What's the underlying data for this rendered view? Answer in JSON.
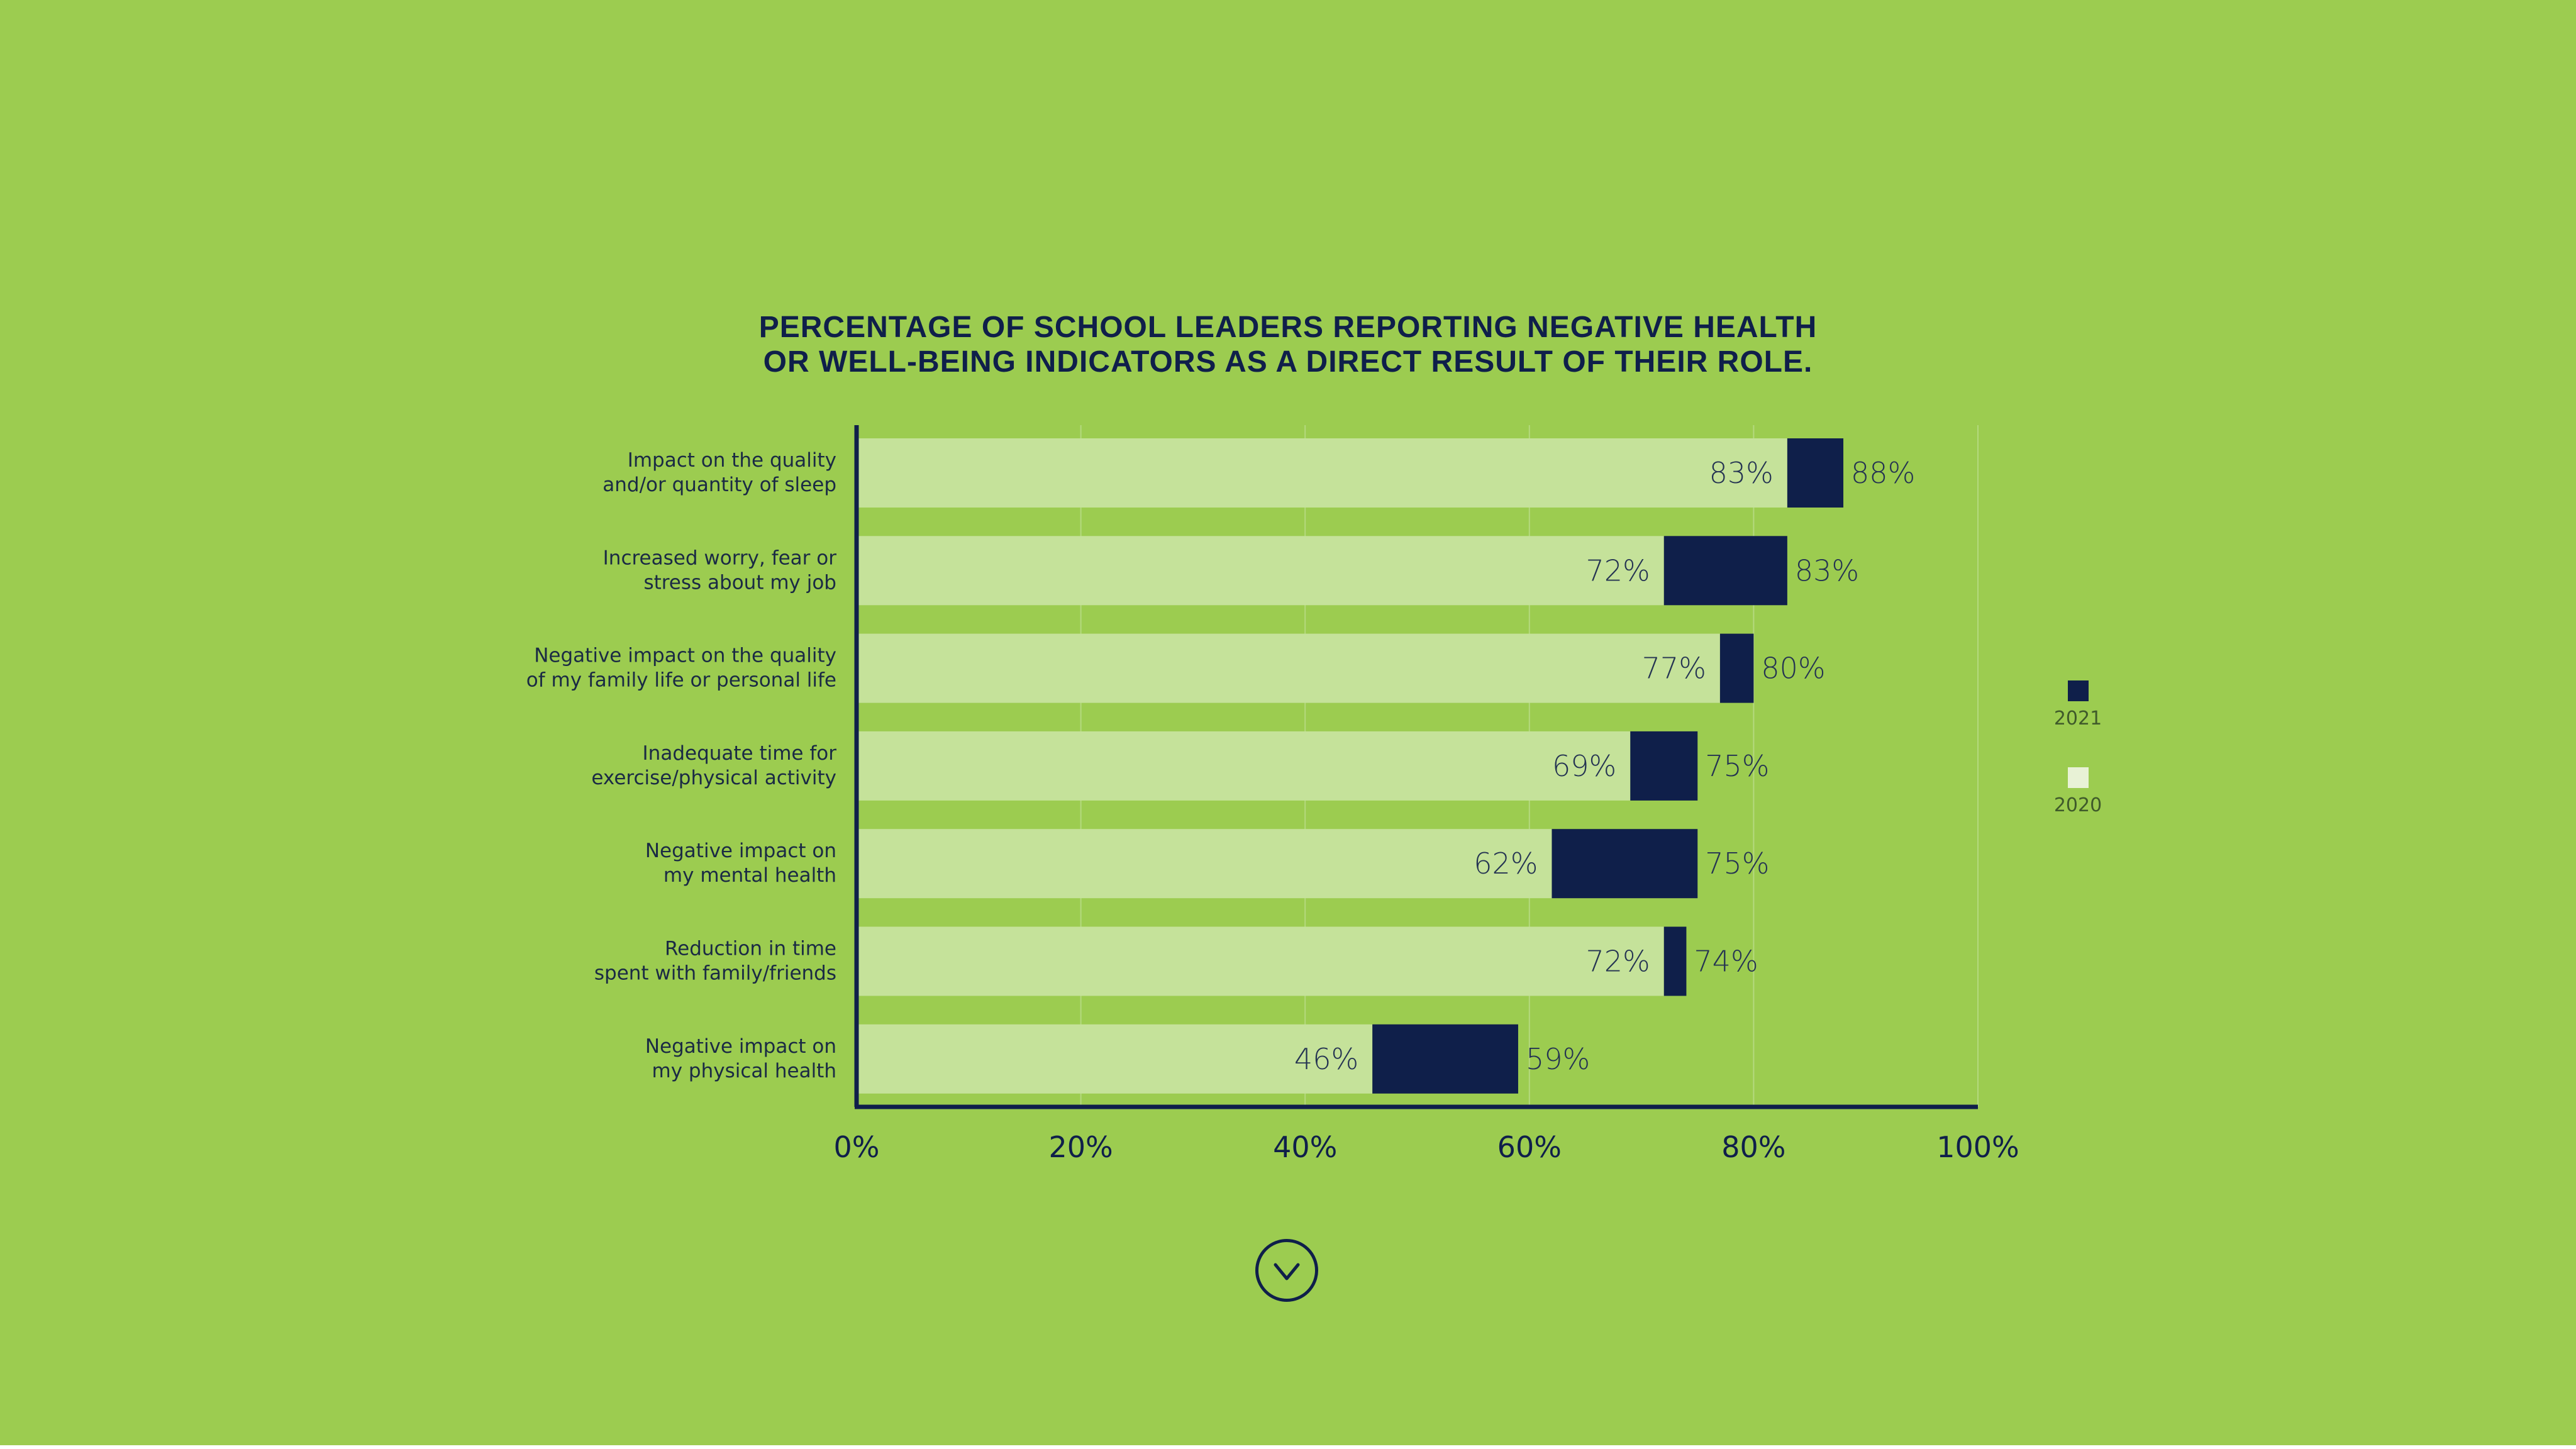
{
  "chart_data": {
    "type": "bar",
    "orientation": "horizontal",
    "title": "PERCENTAGE OF SCHOOL LEADERS REPORTING NEGATIVE HEALTH OR WELL-BEING INDICATORS AS A DIRECT RESULT OF THEIR ROLE.",
    "title_lines": [
      "PERCENTAGE OF SCHOOL LEADERS REPORTING NEGATIVE HEALTH",
      "OR WELL-BEING INDICATORS AS A DIRECT RESULT OF THEIR ROLE."
    ],
    "categories": [
      [
        "Impact on the quality",
        "and/or quantity of sleep"
      ],
      [
        "Increased worry, fear or",
        "stress about my job"
      ],
      [
        "Negative impact on the quality",
        "of my family life or personal life"
      ],
      [
        "Inadequate time for",
        "exercise/physical activity"
      ],
      [
        "Negative impact on",
        "my mental health"
      ],
      [
        "Reduction in time",
        "spent with family/friends"
      ],
      [
        "Negative impact on",
        "my physical health"
      ]
    ],
    "series": [
      {
        "name": "2020",
        "color": "#c5e29a",
        "values": [
          83,
          72,
          77,
          69,
          62,
          72,
          46
        ]
      },
      {
        "name": "2021",
        "color": "#0f1f4a",
        "values": [
          88,
          83,
          80,
          75,
          75,
          74,
          59
        ]
      }
    ],
    "xlim": [
      0,
      100
    ],
    "xticks": [
      "0%",
      "20%",
      "40%",
      "60%",
      "80%",
      "100%"
    ],
    "tick_values": [
      0,
      20,
      40,
      60,
      80,
      100
    ],
    "value_suffix": "%",
    "grid": true,
    "legend": {
      "position": "right",
      "items": [
        {
          "label": "2021",
          "color": "#0f1f4a"
        },
        {
          "label": "2020",
          "color": "#e8f2d6"
        }
      ]
    },
    "xlabel": "",
    "ylabel": ""
  },
  "colors": {
    "background": "#9ccc50",
    "dark": "#0f1f4a",
    "light_bar": "#c5e29a",
    "grid": "#b4d97e"
  },
  "nav": {
    "scroll_icon": "chevron-down-icon"
  }
}
